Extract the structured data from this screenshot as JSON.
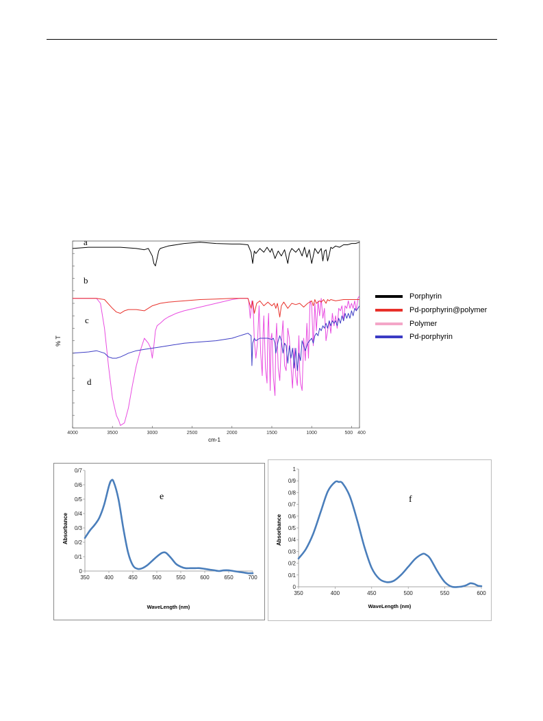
{
  "chart_data": [
    {
      "type": "line",
      "xlabel": "cm-1",
      "ylabel": "% T",
      "xlim": [
        4000,
        400
      ],
      "x_ticks": [
        4000,
        3500,
        3000,
        2500,
        2000,
        1500,
        1000,
        500,
        400
      ],
      "x_tick_labels": [
        "4000",
        "3500",
        "3000",
        "2500",
        "2000",
        "1500",
        "1000",
        "500",
        "400"
      ],
      "legend_position": "right",
      "legend": [
        {
          "name": "Porphyrin",
          "color": "#000000"
        },
        {
          "name": "Pd-porphyrin@polymer",
          "color": "#e8302a"
        },
        {
          "name": "Polymer",
          "color": "#f4a6c8"
        },
        {
          "name": "Pd-porphyrin",
          "color": "#3b3bc4"
        }
      ],
      "annotations": [
        "a",
        "b",
        "c",
        "d"
      ],
      "series": [
        {
          "name": "Porphyrin",
          "color": "#000000",
          "x": [
            4000,
            3800,
            3600,
            3400,
            3200,
            3100,
            3050,
            3000,
            2980,
            2960,
            2940,
            2920,
            2900,
            2800,
            2600,
            2400,
            2200,
            2000,
            1900,
            1800,
            1760,
            1740,
            1720,
            1700,
            1650,
            1600,
            1560,
            1520,
            1500,
            1460,
            1420,
            1380,
            1340,
            1300,
            1280,
            1250,
            1200,
            1160,
            1120,
            1090,
            1060,
            1030,
            1000,
            960,
            920,
            880,
            860,
            840,
            820,
            800,
            780,
            760,
            740,
            700,
            650,
            600,
            550,
            500,
            450,
            400
          ],
          "y": [
            82,
            82.5,
            82.5,
            82.5,
            82,
            81.5,
            82,
            79,
            76,
            75,
            78,
            81,
            82,
            83,
            84,
            84.5,
            84,
            83.8,
            83.8,
            83.5,
            80.5,
            76,
            81,
            80,
            82,
            80.5,
            82.5,
            80.5,
            82,
            78,
            81,
            79,
            81.5,
            76,
            80,
            82,
            80.5,
            82,
            79,
            82.5,
            78.5,
            81.5,
            76,
            82,
            80,
            82,
            77,
            81,
            81.5,
            77,
            79.5,
            82.5,
            82,
            83,
            82.5,
            83.5,
            83.5,
            84,
            84,
            84.5
          ]
        },
        {
          "name": "Pd-porphyrin@polymer",
          "color": "#e8302a",
          "x": [
            4000,
            3800,
            3700,
            3600,
            3500,
            3450,
            3400,
            3350,
            3300,
            3200,
            3100,
            3000,
            2900,
            2800,
            2600,
            2400,
            2200,
            2000,
            1900,
            1800,
            1760,
            1740,
            1720,
            1690,
            1650,
            1600,
            1550,
            1500,
            1470,
            1450,
            1430,
            1400,
            1380,
            1350,
            1300,
            1250,
            1200,
            1150,
            1100,
            1050,
            1000,
            980,
            960,
            940,
            900,
            880,
            850,
            820,
            800,
            780,
            760,
            700,
            600,
            500,
            400
          ],
          "y": [
            62,
            62,
            62,
            61.5,
            58,
            56.5,
            56,
            57,
            57.5,
            57.5,
            57,
            59,
            60,
            60.5,
            61,
            61.5,
            61.7,
            62,
            62,
            62,
            58,
            61,
            56,
            60,
            61,
            59,
            60.5,
            59,
            60,
            58,
            60,
            54.5,
            59,
            60.5,
            58,
            60,
            59.5,
            60,
            58.5,
            60,
            61,
            59,
            61.5,
            60,
            61,
            60.5,
            61.5,
            60,
            61.5,
            61,
            61.5,
            61,
            61.5,
            61.5,
            61.5
          ]
        },
        {
          "name": "Polymer",
          "color": "#e84ae0",
          "x": [
            4000,
            3800,
            3700,
            3650,
            3600,
            3550,
            3500,
            3450,
            3420,
            3400,
            3350,
            3300,
            3250,
            3200,
            3150,
            3100,
            3050,
            3020,
            3000,
            2980,
            2960,
            2940,
            2920,
            2900,
            2850,
            2800,
            2700,
            2600,
            2400,
            2200,
            2000,
            1900,
            1850,
            1800,
            1790,
            1770,
            1750,
            1740,
            1730,
            1720,
            1700,
            1680,
            1660,
            1640,
            1620,
            1610,
            1600,
            1580,
            1560,
            1550,
            1540,
            1520,
            1510,
            1500,
            1480,
            1460,
            1450,
            1440,
            1420,
            1400,
            1380,
            1360,
            1340,
            1320,
            1300,
            1280,
            1260,
            1240,
            1220,
            1200,
            1180,
            1160,
            1150,
            1140,
            1120,
            1100,
            1080,
            1060,
            1040,
            1020,
            1000,
            980,
            960,
            940,
            920,
            900,
            880,
            860,
            840,
            820,
            800,
            780,
            760,
            740,
            720,
            700,
            680,
            660,
            640,
            620,
            600,
            580,
            560,
            540,
            520,
            500,
            480,
            460,
            440,
            420,
            400
          ],
          "y": [
            62,
            62,
            62,
            60,
            50,
            35,
            22,
            15,
            13,
            11,
            12,
            18,
            27,
            35,
            41,
            46,
            44,
            42,
            38,
            43,
            49,
            51,
            51.5,
            52,
            53.5,
            54.5,
            56,
            57,
            58.5,
            60,
            61.5,
            62,
            62,
            62,
            61,
            54,
            61,
            59,
            55,
            45,
            38,
            44,
            59,
            40,
            31,
            48,
            55,
            34,
            28,
            50,
            56,
            25,
            46,
            48,
            30,
            23,
            45,
            52,
            34,
            29,
            44,
            53,
            35,
            33,
            50,
            46,
            35,
            26,
            42,
            31,
            27,
            47,
            33,
            28,
            25,
            46,
            37,
            52,
            38,
            61,
            59,
            43,
            60,
            49,
            61,
            55,
            62,
            54,
            58,
            45,
            49,
            53,
            48,
            56,
            51,
            55,
            50,
            58,
            57,
            59,
            53,
            59,
            58,
            61,
            58,
            60,
            58,
            61,
            57,
            62,
            63
          ]
        },
        {
          "name": "Pd-porphyrin",
          "color": "#3b3bc4",
          "x": [
            4000,
            3800,
            3700,
            3600,
            3550,
            3500,
            3450,
            3400,
            3350,
            3300,
            3200,
            3100,
            3000,
            2900,
            2800,
            2600,
            2400,
            2200,
            2000,
            1900,
            1850,
            1800,
            1780,
            1760,
            1750,
            1740,
            1720,
            1700,
            1650,
            1600,
            1550,
            1500,
            1480,
            1460,
            1450,
            1420,
            1400,
            1380,
            1360,
            1340,
            1320,
            1300,
            1280,
            1260,
            1240,
            1220,
            1200,
            1180,
            1160,
            1140,
            1120,
            1100,
            1080,
            1050,
            1000,
            980,
            960,
            940,
            920,
            900,
            880,
            860,
            840,
            820,
            800,
            780,
            760,
            740,
            720,
            700,
            680,
            660,
            640,
            620,
            600,
            580,
            560,
            540,
            520,
            500,
            480,
            460,
            440,
            420,
            400
          ],
          "y": [
            40,
            40.5,
            41,
            40,
            38.5,
            38,
            38,
            38.5,
            39.2,
            40,
            41,
            41.5,
            42,
            42.5,
            43,
            44,
            44.5,
            45,
            46,
            47,
            47.5,
            48,
            47.5,
            47,
            35,
            44,
            46,
            45,
            46,
            46,
            46,
            45.5,
            46,
            44,
            40,
            45,
            47,
            45,
            40,
            44,
            43,
            36,
            43,
            38,
            42,
            34,
            42,
            33,
            40,
            37,
            45,
            43,
            41,
            44,
            46,
            44,
            47,
            48,
            47,
            50,
            49,
            51,
            50,
            52,
            50,
            53,
            51,
            53,
            52,
            53,
            51,
            54,
            52,
            55,
            53,
            56,
            54,
            56,
            54,
            57,
            55,
            58,
            57,
            58,
            59
          ]
        }
      ]
    },
    {
      "type": "line",
      "xlabel": "WaveLength (nm)",
      "ylabel": "Absorbance",
      "xlim": [
        350,
        700
      ],
      "ylim": [
        0,
        0.7
      ],
      "x_ticks": [
        350,
        400,
        450,
        500,
        550,
        600,
        650,
        700
      ],
      "y_ticks": [
        0,
        0.1,
        0.2,
        0.3,
        0.4,
        0.5,
        0.6,
        0.7
      ],
      "y_tick_labels": [
        "0",
        "0/1",
        "0/2",
        "0/3",
        "0/4",
        "0/5",
        "0/6",
        "0/7"
      ],
      "annotation": "e",
      "series": [
        {
          "color": "#4a7ebb",
          "x": [
            350,
            360,
            370,
            380,
            390,
            400,
            405,
            410,
            420,
            430,
            440,
            450,
            460,
            470,
            480,
            490,
            500,
            510,
            515,
            520,
            530,
            540,
            550,
            560,
            570,
            580,
            590,
            600,
            610,
            620,
            630,
            640,
            650,
            660,
            670,
            680,
            690,
            700
          ],
          "y": [
            0.23,
            0.28,
            0.32,
            0.37,
            0.46,
            0.59,
            0.63,
            0.62,
            0.5,
            0.3,
            0.13,
            0.04,
            0.015,
            0.02,
            0.04,
            0.07,
            0.1,
            0.125,
            0.13,
            0.125,
            0.09,
            0.05,
            0.03,
            0.02,
            0.02,
            0.02,
            0.02,
            0.015,
            0.01,
            0.005,
            0.0,
            0.005,
            0.005,
            0.0,
            -0.005,
            -0.01,
            -0.015,
            -0.015
          ]
        }
      ]
    },
    {
      "type": "line",
      "xlabel": "WaveLength (nm)",
      "ylabel": "Absorbance",
      "xlim": [
        350,
        600
      ],
      "ylim": [
        0,
        1
      ],
      "x_ticks": [
        350,
        400,
        450,
        500,
        550,
        600
      ],
      "y_ticks": [
        0,
        0.1,
        0.2,
        0.3,
        0.4,
        0.5,
        0.6,
        0.7,
        0.8,
        0.9,
        1
      ],
      "y_tick_labels": [
        "0",
        "0/1",
        "0/2",
        "0/3",
        "0/4",
        "0/5",
        "0/6",
        "0/7",
        "0/8",
        "0/9",
        "1"
      ],
      "annotation": "f",
      "series": [
        {
          "color": "#4a7ebb",
          "x": [
            350,
            360,
            370,
            380,
            390,
            400,
            405,
            410,
            420,
            430,
            440,
            450,
            460,
            470,
            480,
            490,
            500,
            510,
            520,
            525,
            530,
            540,
            550,
            560,
            570,
            575,
            580,
            585,
            590,
            595,
            600
          ],
          "y": [
            0.24,
            0.32,
            0.45,
            0.63,
            0.81,
            0.89,
            0.89,
            0.88,
            0.77,
            0.57,
            0.34,
            0.16,
            0.07,
            0.04,
            0.05,
            0.1,
            0.17,
            0.24,
            0.28,
            0.27,
            0.24,
            0.13,
            0.04,
            0.0,
            0.0,
            0.005,
            0.015,
            0.03,
            0.025,
            0.01,
            0.005
          ]
        }
      ]
    }
  ]
}
